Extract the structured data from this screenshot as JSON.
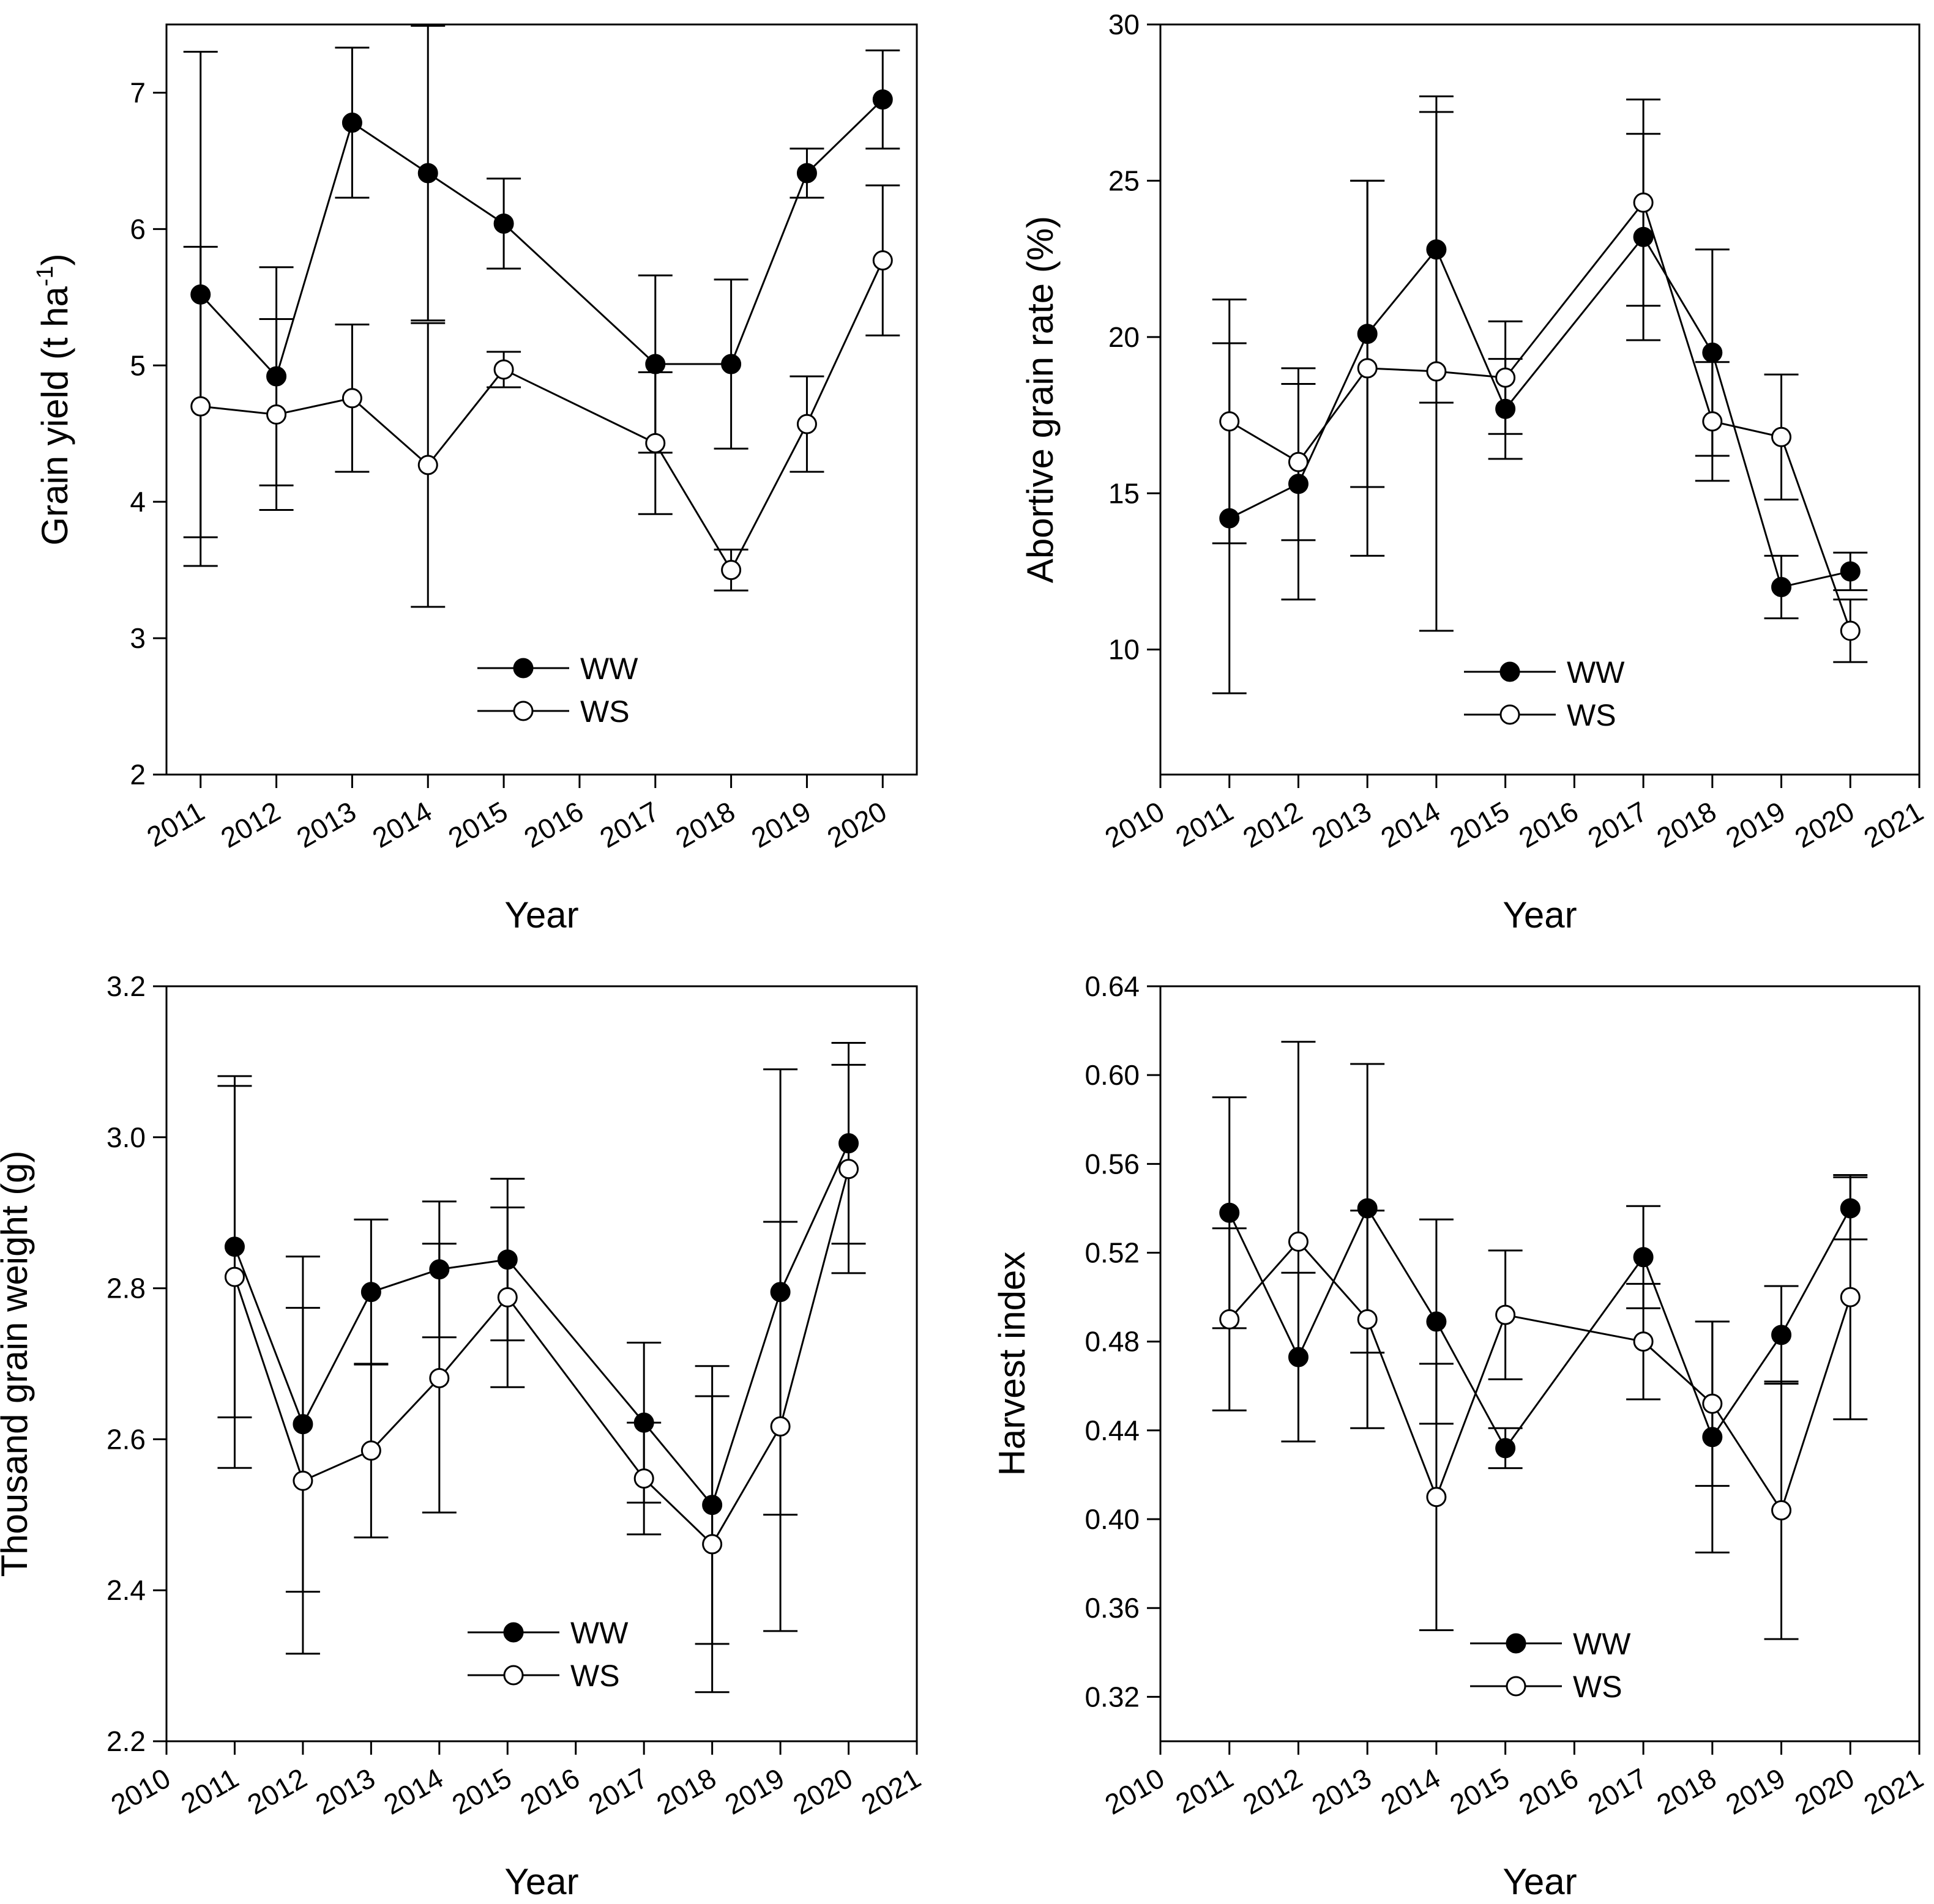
{
  "chart_data": [
    {
      "type": "line",
      "id": "grain-yield",
      "xlabel": "Year",
      "ylabel": "Grain yield (t ha",
      "ylabel_sup": "-1",
      "ylabel_tail": ")",
      "xlim": [
        2010.55,
        2020.45
      ],
      "ylim": [
        2,
        7.5
      ],
      "xticks": [
        2011,
        2012,
        2013,
        2014,
        2015,
        2016,
        2017,
        2018,
        2019,
        2020
      ],
      "yticks": [
        2,
        3,
        4,
        5,
        6,
        7
      ],
      "legend_position": "bottom-center",
      "series": [
        {
          "name": "WW",
          "marker": "filled",
          "x": [
            2011,
            2012,
            2013,
            2014,
            2015,
            2017,
            2018,
            2019,
            2020
          ],
          "y": [
            5.52,
            4.92,
            6.78,
            6.41,
            6.04,
            5.01,
            5.01,
            6.41,
            6.95
          ],
          "err": [
            1.78,
            0.8,
            0.55,
            1.08,
            0.33,
            0.65,
            0.62,
            0.18,
            0.36
          ]
        },
        {
          "name": "WS",
          "marker": "open",
          "x": [
            2011,
            2012,
            2013,
            2014,
            2015,
            2017,
            2018,
            2019,
            2020
          ],
          "y": [
            4.7,
            4.64,
            4.76,
            4.27,
            4.97,
            4.43,
            3.5,
            4.57,
            5.77
          ],
          "err": [
            1.17,
            0.7,
            0.54,
            1.04,
            0.13,
            0.52,
            0.15,
            0.35,
            0.55
          ]
        }
      ]
    },
    {
      "type": "line",
      "id": "abortive-grain-rate",
      "xlabel": "Year",
      "ylabel": "Abortive grain rate (%)",
      "xlim": [
        2010,
        2021
      ],
      "ylim": [
        6,
        30
      ],
      "xticks": [
        2010,
        2011,
        2012,
        2013,
        2014,
        2015,
        2016,
        2017,
        2018,
        2019,
        2020,
        2021
      ],
      "yticks": [
        10,
        15,
        20,
        25,
        30
      ],
      "legend_position": "bottom-center",
      "series": [
        {
          "name": "WW",
          "marker": "filled",
          "x": [
            2011,
            2012,
            2013,
            2014,
            2015,
            2017,
            2018,
            2019,
            2020
          ],
          "y": [
            14.2,
            15.3,
            20.1,
            22.8,
            17.7,
            23.2,
            19.5,
            12.0,
            12.5
          ],
          "err": [
            5.6,
            3.7,
            4.9,
            4.9,
            1.6,
            3.3,
            3.3,
            1.0,
            0.6
          ]
        },
        {
          "name": "WS",
          "marker": "open",
          "x": [
            2011,
            2012,
            2013,
            2014,
            2015,
            2017,
            2018,
            2019,
            2020
          ],
          "y": [
            17.3,
            16.0,
            19.0,
            18.9,
            18.7,
            24.3,
            17.3,
            16.8,
            10.6
          ],
          "err": [
            3.9,
            2.5,
            6.0,
            8.3,
            1.8,
            3.3,
            1.9,
            2.0,
            1.0
          ]
        }
      ]
    },
    {
      "type": "line",
      "id": "thousand-grain-weight",
      "xlabel": "Year",
      "ylabel": "Thousand grain weight (g)",
      "xlim": [
        2010,
        2021
      ],
      "ylim": [
        2.2,
        3.2
      ],
      "xticks": [
        2010,
        2011,
        2012,
        2013,
        2014,
        2015,
        2016,
        2017,
        2018,
        2019,
        2020,
        2021
      ],
      "yticks": [
        2.2,
        2.4,
        2.6,
        2.8,
        3.0,
        3.2
      ],
      "ytick_decimals": 1,
      "legend_position": "bottom-center",
      "series": [
        {
          "name": "WW",
          "marker": "filled",
          "x": [
            2011,
            2012,
            2013,
            2014,
            2015,
            2017,
            2018,
            2019,
            2020
          ],
          "y": [
            2.855,
            2.62,
            2.795,
            2.825,
            2.838,
            2.622,
            2.513,
            2.795,
            2.992
          ],
          "err": [
            0.226,
            0.222,
            0.096,
            0.09,
            0.107,
            0.106,
            0.184,
            0.295,
            0.133
          ]
        },
        {
          "name": "WS",
          "marker": "open",
          "x": [
            2011,
            2012,
            2013,
            2014,
            2015,
            2017,
            2018,
            2019,
            2020
          ],
          "y": [
            2.815,
            2.545,
            2.585,
            2.681,
            2.788,
            2.548,
            2.461,
            2.617,
            2.958
          ],
          "err": [
            0.253,
            0.229,
            0.115,
            0.178,
            0.119,
            0.074,
            0.196,
            0.271,
            0.138
          ]
        }
      ]
    },
    {
      "type": "line",
      "id": "harvest-index",
      "xlabel": "Year",
      "ylabel": "Harvest index",
      "xlim": [
        2010,
        2021
      ],
      "ylim": [
        0.3,
        0.64
      ],
      "xticks": [
        2010,
        2011,
        2012,
        2013,
        2014,
        2015,
        2016,
        2017,
        2018,
        2019,
        2020,
        2021
      ],
      "yticks": [
        0.32,
        0.36,
        0.4,
        0.44,
        0.48,
        0.52,
        0.56,
        0.6,
        0.64
      ],
      "ytick_decimals": 2,
      "legend_position": "bottom-center",
      "series": [
        {
          "name": "WW",
          "marker": "filled",
          "x": [
            2011,
            2012,
            2013,
            2014,
            2015,
            2017,
            2018,
            2019,
            2020
          ],
          "y": [
            0.538,
            0.473,
            0.54,
            0.489,
            0.432,
            0.518,
            0.437,
            0.483,
            0.54
          ],
          "err": [
            0.052,
            0.038,
            0.065,
            0.046,
            0.009,
            0.023,
            0.052,
            0.022,
            0.014
          ]
        },
        {
          "name": "WS",
          "marker": "open",
          "x": [
            2011,
            2012,
            2013,
            2014,
            2015,
            2017,
            2018,
            2019,
            2020
          ],
          "y": [
            0.49,
            0.525,
            0.49,
            0.41,
            0.492,
            0.48,
            0.452,
            0.404,
            0.5
          ],
          "err": [
            0.041,
            0.09,
            0.049,
            0.06,
            0.029,
            0.026,
            0.037,
            0.058,
            0.055
          ]
        }
      ]
    }
  ]
}
